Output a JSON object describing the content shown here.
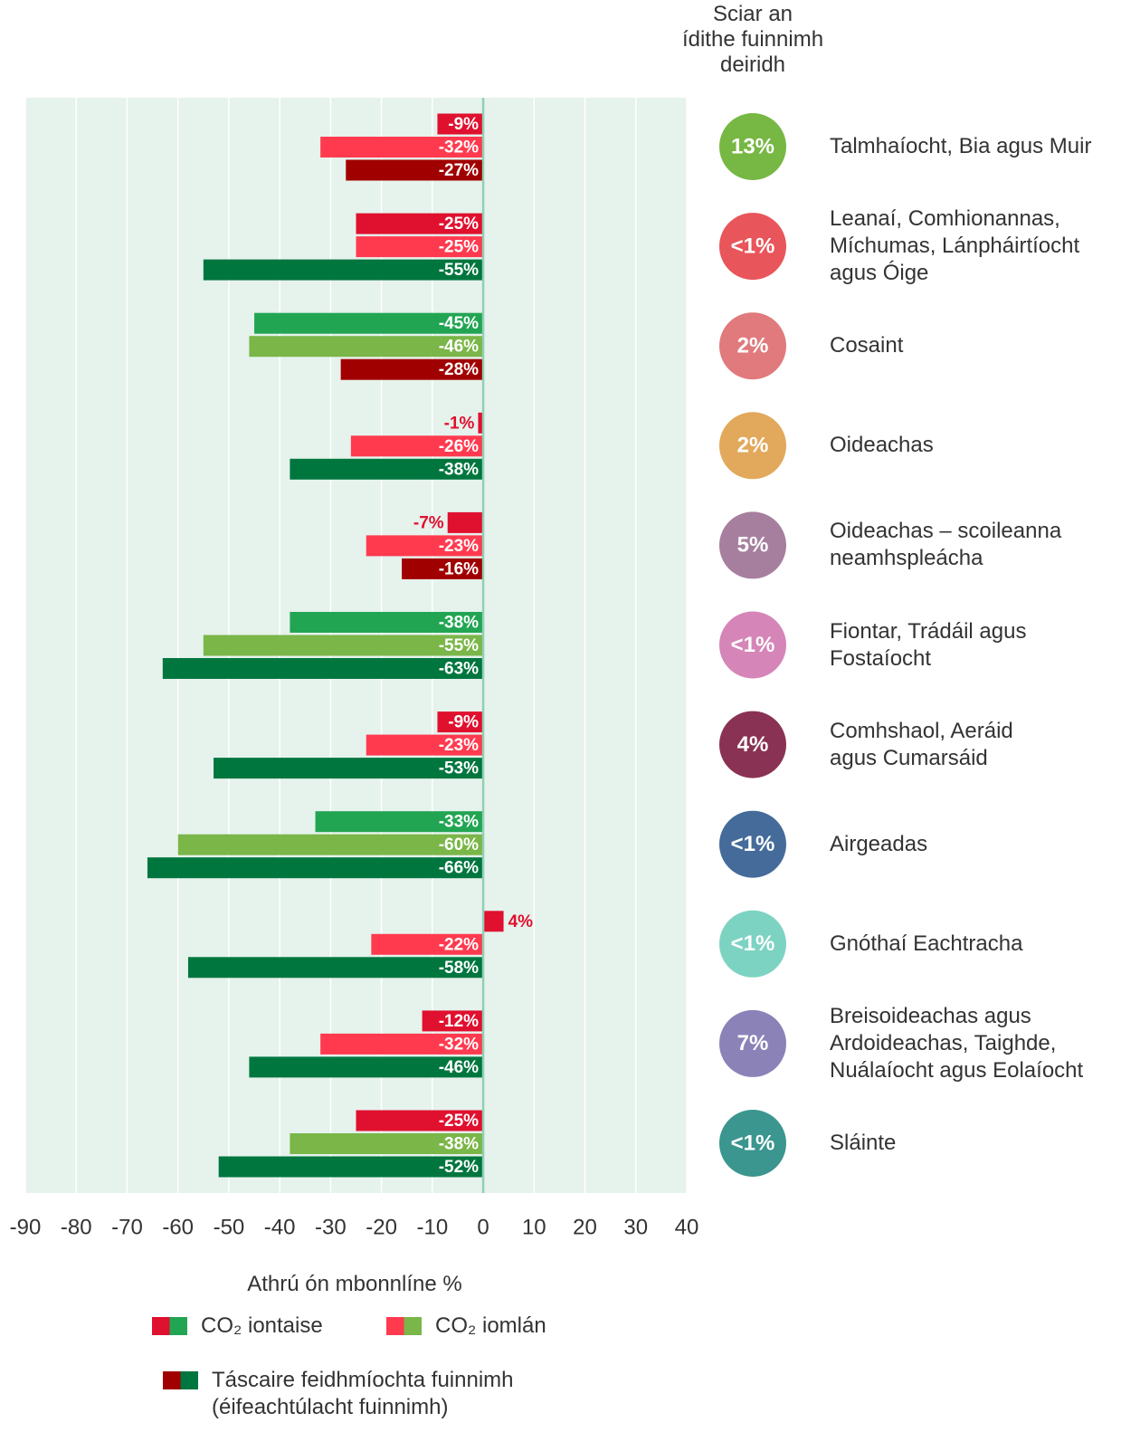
{
  "chart_data": {
    "type": "bar",
    "orientation": "horizontal",
    "share_title": "Sciar an\nídithe fuinnimh\ndeiridh",
    "x_label": "Athrú ón mbonnlíne %",
    "xlim": [
      -90,
      40
    ],
    "xticks": [
      -90,
      -80,
      -70,
      -60,
      -50,
      -40,
      -30,
      -20,
      -10,
      0,
      10,
      20,
      30,
      40
    ],
    "grid": true,
    "categories": [
      "Talmhaíocht, Bia agus Muir",
      "Leanaí, Comhionannas,\nMíchumas, Lánpháirtíocht\nagus Óige",
      "Cosaint",
      "Oideachas",
      "Oideachas – scoileanna\nneamhspleácha",
      "Fiontar, Trádáil agus\nFostaíocht",
      "Comhshaol, Aeráid\nagus Cumarsáid",
      "Airgeadas",
      "Gnóthaí Eachtracha",
      "Breisoideachas agus\nArdoideachas, Taighde,\nNuálaíocht agus Eolaíocht",
      "Sláinte"
    ],
    "share_labels": [
      "13%",
      "<1%",
      "2%",
      "2%",
      "5%",
      "<1%",
      "4%",
      "<1%",
      "<1%",
      "7%",
      "<1%"
    ],
    "share_colors": [
      "#77b743",
      "#e8555a",
      "#e07a7d",
      "#e2a85c",
      "#a77f9e",
      "#d585b8",
      "#8a3254",
      "#456b9a",
      "#7dd3c2",
      "#8b82b8",
      "#3a968e"
    ],
    "series": [
      {
        "name": "CO₂ iontaise",
        "legend_colors": [
          "#e0102f",
          "#22a553"
        ],
        "values": [
          -9,
          -25,
          -45,
          -1,
          -7,
          -38,
          -9,
          -33,
          4,
          -12,
          -25
        ],
        "value_labels": [
          "-9%",
          "-25%",
          "-45%",
          "-1%",
          "-7%",
          "-38%",
          "-9%",
          "-33%",
          "4%",
          "-12%",
          "-25%"
        ],
        "colors": [
          "#e0102f",
          "#e0102f",
          "#22a553",
          "#e0102f",
          "#e0102f",
          "#22a553",
          "#e0102f",
          "#22a553",
          "#e0102f",
          "#e0102f",
          "#e0102f"
        ]
      },
      {
        "name": "CO₂ iomlán",
        "legend_colors": [
          "#ff3a4f",
          "#7ab648"
        ],
        "values": [
          -32,
          -25,
          -46,
          -26,
          -23,
          -55,
          -23,
          -60,
          -22,
          -32,
          -38
        ],
        "value_labels": [
          "-32%",
          "-25%",
          "-46%",
          "-26%",
          "-23%",
          "-55%",
          "-23%",
          "-60%",
          "-22%",
          "-32%",
          "-38%"
        ],
        "colors": [
          "#ff3a4f",
          "#ff3a4f",
          "#7ab648",
          "#ff3a4f",
          "#ff3a4f",
          "#7ab648",
          "#ff3a4f",
          "#7ab648",
          "#ff3a4f",
          "#ff3a4f",
          "#7ab648"
        ]
      },
      {
        "name": "Táscaire feidhmíochta fuinnimh\n(éifeachtúlacht fuinnimh)",
        "legend_colors": [
          "#a10000",
          "#00763f"
        ],
        "values": [
          -27,
          -55,
          -28,
          -38,
          -16,
          -63,
          -53,
          -66,
          -58,
          -46,
          -52
        ],
        "value_labels": [
          "-27%",
          "-55%",
          "-28%",
          "-38%",
          "-16%",
          "-63%",
          "-53%",
          "-66%",
          "-58%",
          "-46%",
          "-52%"
        ],
        "colors": [
          "#a10000",
          "#00763f",
          "#a10000",
          "#00763f",
          "#a10000",
          "#00763f",
          "#00763f",
          "#00763f",
          "#00763f",
          "#00763f",
          "#00763f"
        ]
      }
    ]
  }
}
